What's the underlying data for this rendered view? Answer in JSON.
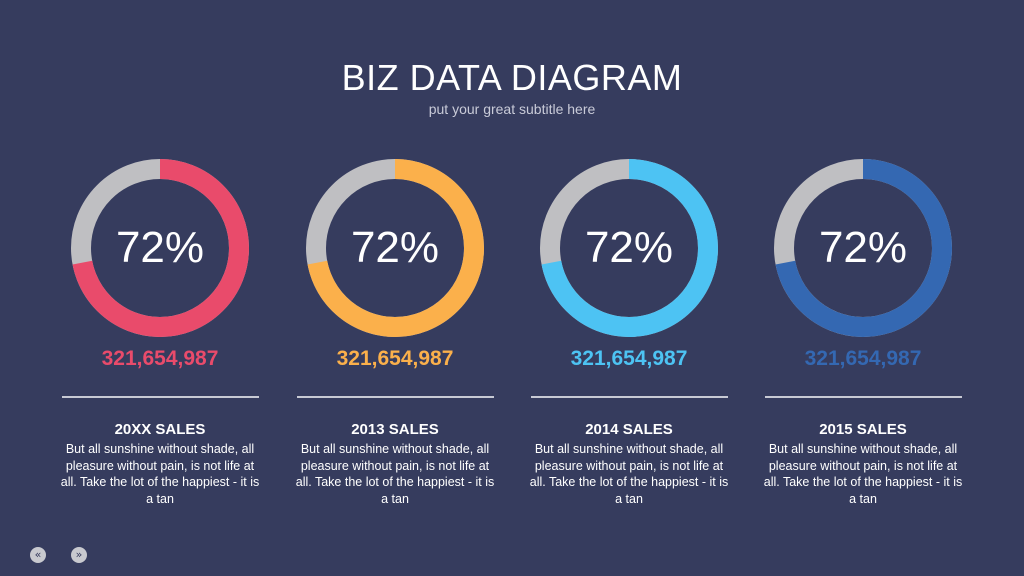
{
  "header": {
    "title": "BIZ DATA DIAGRAM",
    "subtitle": "put your great subtitle here"
  },
  "colors": {
    "background": "#363c5e",
    "track": "#bfbfc2",
    "series": [
      "#e94b6b",
      "#fbb04b",
      "#4dc3f3",
      "#3468b2"
    ]
  },
  "chart_data": [
    {
      "type": "pie",
      "title": "20XX SALES",
      "values": [
        72,
        28
      ],
      "percent_label": "72%",
      "amount": "321,654,987",
      "description": "But all sunshine without shade, all pleasure without pain, is not life at all. Take the lot of the happiest - it is a tan",
      "color": "#e94b6b"
    },
    {
      "type": "pie",
      "title": "2013 SALES",
      "values": [
        72,
        28
      ],
      "percent_label": "72%",
      "amount": "321,654,987",
      "description": "But all sunshine without shade, all pleasure without pain, is not life at all. Take the lot of the happiest - it is a tan",
      "color": "#fbb04b"
    },
    {
      "type": "pie",
      "title": "2014 SALES",
      "values": [
        72,
        28
      ],
      "percent_label": "72%",
      "amount": "321,654,987",
      "description": "But all sunshine without shade, all pleasure without pain, is not life at all. Take the lot of the happiest - it is a tan",
      "color": "#4dc3f3"
    },
    {
      "type": "pie",
      "title": "2015 SALES",
      "values": [
        72,
        28
      ],
      "percent_label": "72%",
      "amount": "321,654,987",
      "description": "But all sunshine without shade, all pleasure without pain, is not life at all. Take the lot of the happiest - it is a tan",
      "color": "#3468b2"
    }
  ],
  "nav": {
    "prev_icon": "double-chevron-left-icon",
    "next_icon": "double-chevron-right-icon",
    "prev_glyph": "«",
    "next_glyph": "»"
  }
}
